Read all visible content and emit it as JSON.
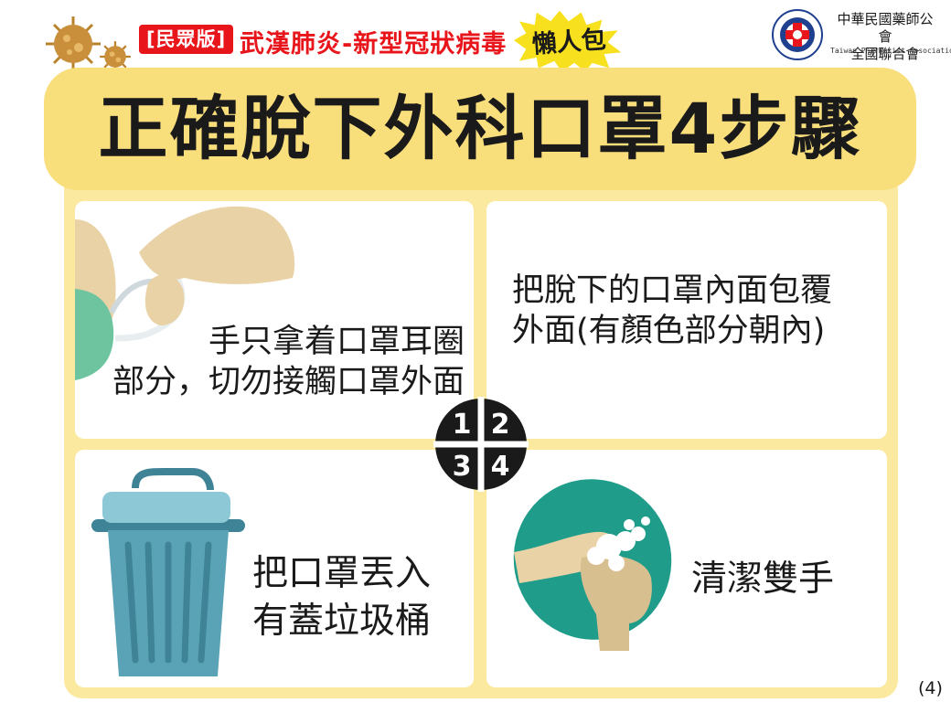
{
  "header": {
    "edition_tag": "[民眾版]",
    "series_title": "武漢肺炎-新型冠狀病毒",
    "badge": "懶人包"
  },
  "organization": {
    "name_line1": "中華民國藥師公會",
    "name_line2": "全國聯合會",
    "name_en": "Taiwan Pharmacist Association",
    "logo_ring_text": "Taiwan Pharmacist Association"
  },
  "title": "正確脫下外科口罩4步驟",
  "steps": [
    {
      "number": "1",
      "text": "手只拿着口罩耳圈\n部分，切勿接觸口罩外面"
    },
    {
      "number": "2",
      "text": "把脫下的口罩內面包覆\n外面(有顏色部分朝內)"
    },
    {
      "number": "3",
      "text": "把口罩丟入\n有蓋垃圾桶"
    },
    {
      "number": "4",
      "text": "清潔雙手"
    }
  ],
  "page_number": "(4)",
  "colors": {
    "title_band": "#f9de7c",
    "frame": "#fbe9a0",
    "accent_red": "#e8151b",
    "bin": "#5aa3b7",
    "mask": "#6fc4a0",
    "skin": "#e9d2a6",
    "towel": "#1f9c8a"
  }
}
